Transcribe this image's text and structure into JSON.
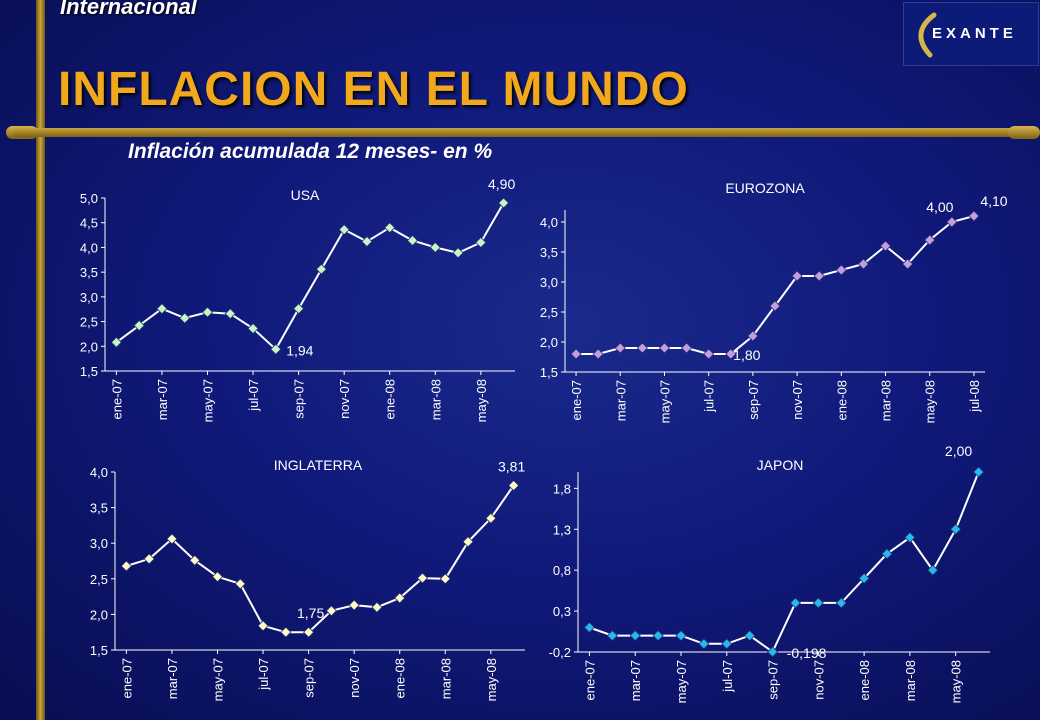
{
  "header": {
    "section": "Internacional",
    "title": "INFLACION EN EL MUNDO",
    "subtitle": "Inflación acumulada 12 meses- en %",
    "logo_text": "EXANTE"
  },
  "chart_data": [
    {
      "type": "line",
      "title": "USA",
      "ylim": [
        1.5,
        5.0
      ],
      "yticks": [
        1.5,
        2.0,
        2.5,
        3.0,
        3.5,
        4.0,
        4.5,
        5.0
      ],
      "ytick_labels": [
        "1,5",
        "2,0",
        "2,5",
        "3,0",
        "3,5",
        "4,0",
        "4,5",
        "5,0"
      ],
      "xtick_labels": [
        "ene-07",
        "mar-07",
        "may-07",
        "jul-07",
        "sep-07",
        "nov-07",
        "ene-08",
        "mar-08",
        "may-08"
      ],
      "series": [
        {
          "values": [
            2.08,
            2.42,
            2.76,
            2.57,
            2.69,
            2.66,
            2.36,
            1.94,
            2.76,
            3.56,
            4.36,
            4.12,
            4.4,
            4.14,
            4.0,
            3.89,
            4.1,
            4.9
          ],
          "color": "#c8f5c8"
        }
      ],
      "annotations": [
        {
          "text": "4,90",
          "index": 17
        },
        {
          "text": "1,94",
          "index": 7
        }
      ]
    },
    {
      "type": "line",
      "title": "EUROZONA",
      "ylim": [
        1.5,
        4.2
      ],
      "yticks": [
        1.5,
        2.0,
        2.5,
        3.0,
        3.5,
        4.0
      ],
      "ytick_labels": [
        "1,5",
        "2,0",
        "2,5",
        "3,0",
        "3,5",
        "4,0"
      ],
      "xtick_labels": [
        "ene-07",
        "mar-07",
        "may-07",
        "jul-07",
        "sep-07",
        "nov-07",
        "ene-08",
        "mar-08",
        "may-08",
        "jul-08"
      ],
      "series": [
        {
          "values": [
            1.8,
            1.8,
            1.9,
            1.9,
            1.9,
            1.9,
            1.8,
            1.8,
            2.1,
            2.6,
            3.1,
            3.1,
            3.2,
            3.3,
            3.6,
            3.3,
            3.7,
            4.0,
            4.1
          ],
          "color": "#c79be0"
        }
      ],
      "annotations": [
        {
          "text": "4,00",
          "index": 17
        },
        {
          "text": "4,10",
          "index": 18
        },
        {
          "text": "1,80",
          "index": 7
        }
      ]
    },
    {
      "type": "line",
      "title": "INGLATERRA",
      "ylim": [
        1.5,
        4.0
      ],
      "yticks": [
        1.5,
        2.0,
        2.5,
        3.0,
        3.5,
        4.0
      ],
      "ytick_labels": [
        "1,5",
        "2,0",
        "2,5",
        "3,0",
        "3,5",
        "4,0"
      ],
      "xtick_labels": [
        "ene-07",
        "mar-07",
        "may-07",
        "jul-07",
        "sep-07",
        "nov-07",
        "ene-08",
        "mar-08",
        "may-08"
      ],
      "series": [
        {
          "values": [
            2.68,
            2.78,
            3.06,
            2.76,
            2.53,
            2.43,
            1.84,
            1.75,
            1.75,
            2.05,
            2.13,
            2.1,
            2.23,
            2.51,
            2.5,
            3.02,
            3.35,
            3.81
          ],
          "color": "#fffac8"
        }
      ],
      "annotations": [
        {
          "text": "3,81",
          "index": 17
        },
        {
          "text": "1,75",
          "index": 8
        }
      ]
    },
    {
      "type": "line",
      "title": "JAPON",
      "ylim": [
        -0.2,
        2.0
      ],
      "yticks": [
        -0.2,
        0.3,
        0.8,
        1.3,
        1.8
      ],
      "ytick_labels": [
        "-0,2",
        "0,3",
        "0,8",
        "1,3",
        "1,8"
      ],
      "xtick_labels": [
        "ene-07",
        "mar-07",
        "may-07",
        "jul-07",
        "sep-07",
        "nov-07",
        "ene-08",
        "mar-08",
        "may-08"
      ],
      "series": [
        {
          "values": [
            0.1,
            0.0,
            0.0,
            0.0,
            0.0,
            -0.1,
            -0.1,
            0.0,
            -0.198,
            0.4,
            0.4,
            0.4,
            0.7,
            1.0,
            1.2,
            0.8,
            1.3,
            2.0
          ],
          "color": "#26b8ee"
        }
      ],
      "annotations": [
        {
          "text": "2,00",
          "index": 17
        },
        {
          "text": "-0,198",
          "index": 8
        }
      ]
    }
  ]
}
